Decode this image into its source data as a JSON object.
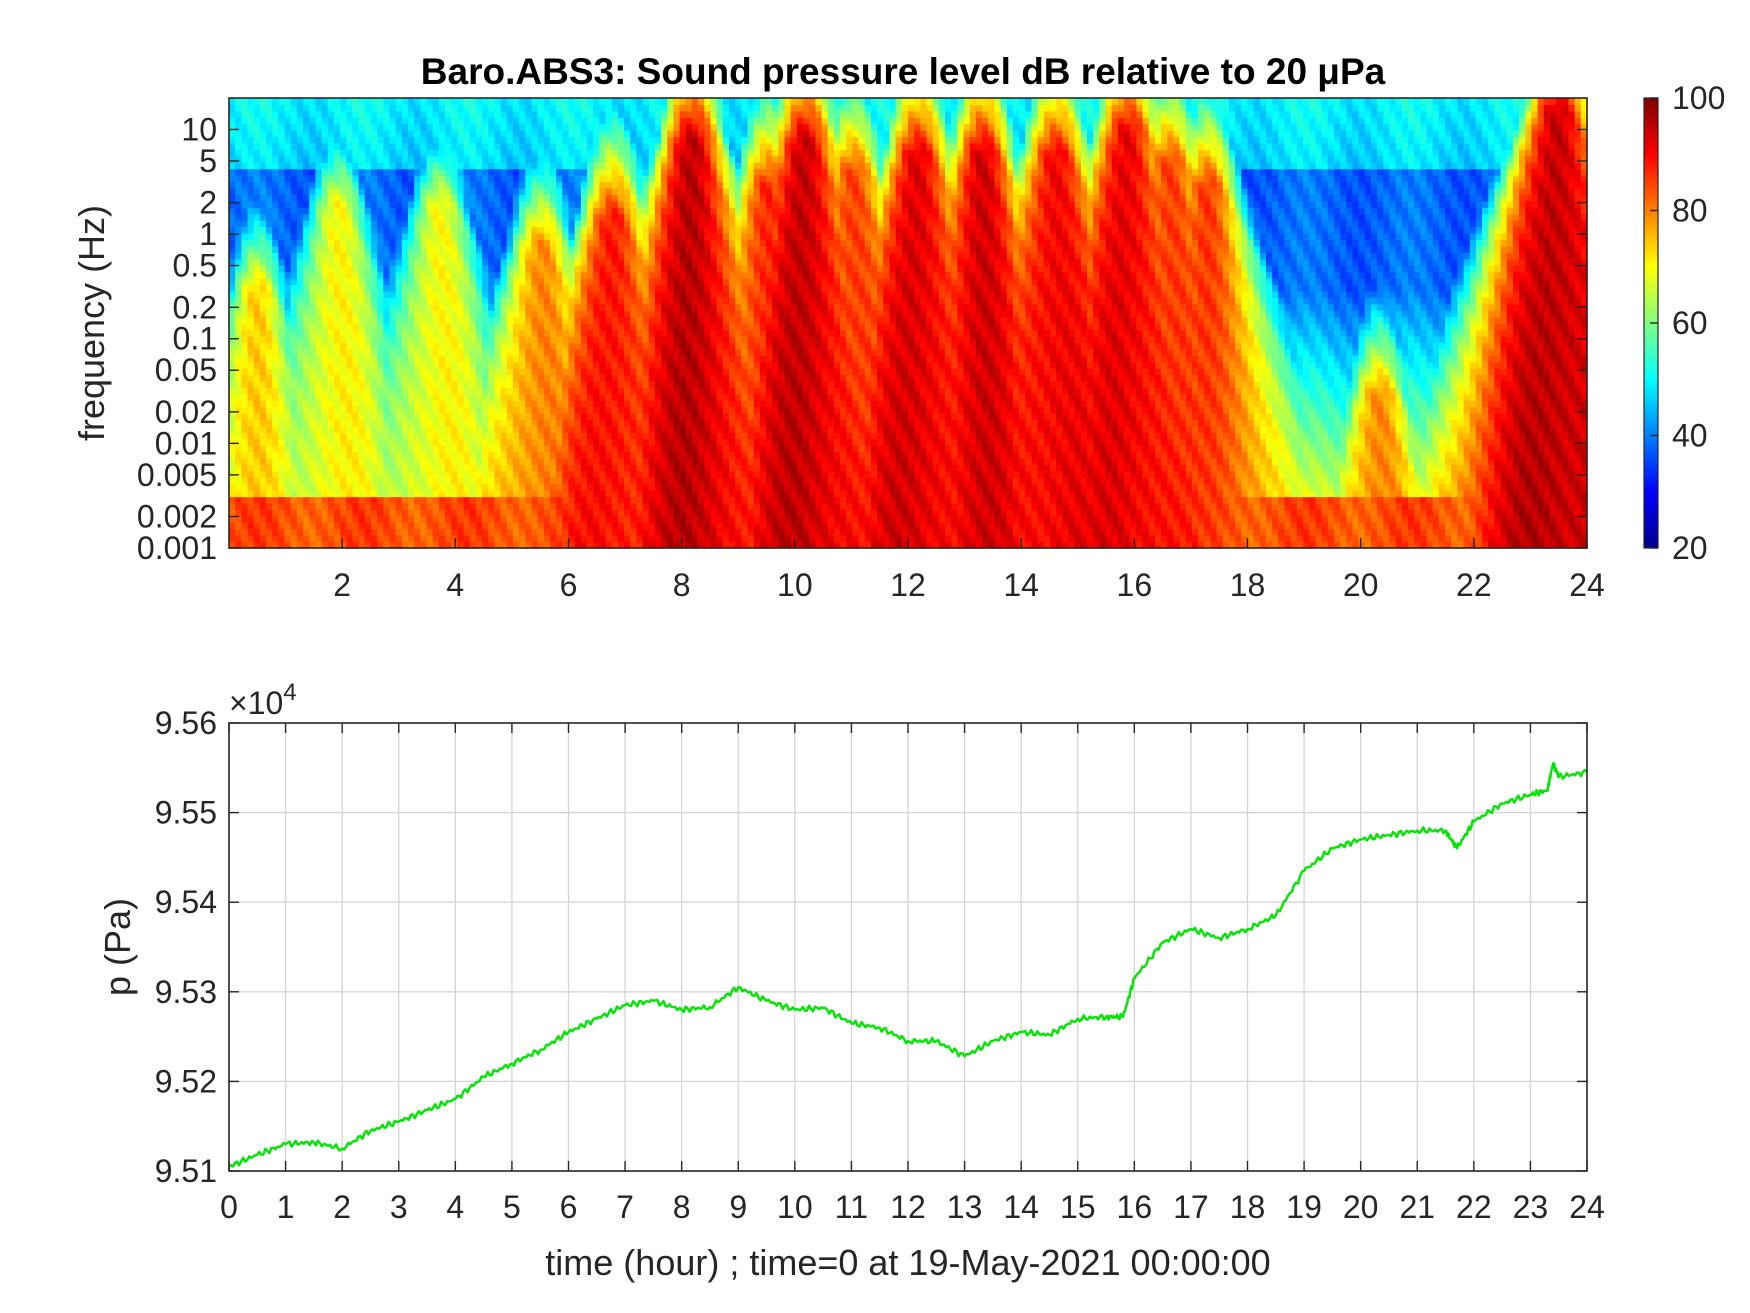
{
  "chart_data": [
    {
      "type": "heatmap",
      "title": "Baro.ABS3: Sound pressure level dB relative to 20 μPa",
      "xlabel": "",
      "ylabel": "frequency (Hz)",
      "x_range": [
        0,
        24
      ],
      "x_ticks": [
        2,
        4,
        6,
        8,
        10,
        12,
        14,
        16,
        18,
        20,
        22,
        24
      ],
      "y_scale": "log",
      "y_range": [
        0.001,
        20
      ],
      "y_ticks": [
        0.001,
        0.002,
        0.005,
        0.01,
        0.02,
        0.05,
        0.1,
        0.2,
        0.5,
        1,
        2,
        5,
        10
      ],
      "y_tick_labels": [
        "0.001",
        "0.002",
        "0.005",
        "0.01",
        "0.02",
        "0.05",
        "0.1",
        "0.2",
        "0.5",
        "1",
        "2",
        "5",
        "10"
      ],
      "colormap": "jet",
      "colorbar": {
        "min": 20,
        "max": 100,
        "ticks": [
          20,
          40,
          60,
          80,
          100
        ]
      },
      "grid": false,
      "activity_bursts": [
        {
          "hour": 0.5,
          "level_db": 72,
          "reach_hz": 0.3
        },
        {
          "hour": 1.9,
          "level_db": 70,
          "reach_hz": 2.0
        },
        {
          "hour": 3.7,
          "level_db": 70,
          "reach_hz": 2.0
        },
        {
          "hour": 5.5,
          "level_db": 80,
          "reach_hz": 0.8
        },
        {
          "hour": 6.8,
          "level_db": 90,
          "reach_hz": 1.5
        },
        {
          "hour": 8.2,
          "level_db": 94,
          "reach_hz": 8.0
        },
        {
          "hour": 9.5,
          "level_db": 86,
          "reach_hz": 3.0
        },
        {
          "hour": 10.2,
          "level_db": 94,
          "reach_hz": 8.0
        },
        {
          "hour": 11.0,
          "level_db": 86,
          "reach_hz": 4.0
        },
        {
          "hour": 12.2,
          "level_db": 93,
          "reach_hz": 6.0
        },
        {
          "hour": 13.3,
          "level_db": 92,
          "reach_hz": 6.0
        },
        {
          "hour": 14.6,
          "level_db": 92,
          "reach_hz": 6.0
        },
        {
          "hour": 15.9,
          "level_db": 92,
          "reach_hz": 10.0
        },
        {
          "hour": 16.6,
          "level_db": 86,
          "reach_hz": 5.0
        },
        {
          "hour": 17.3,
          "level_db": 84,
          "reach_hz": 3.0
        },
        {
          "hour": 20.3,
          "level_db": 80,
          "reach_hz": 0.03
        },
        {
          "hour": 23.5,
          "level_db": 96,
          "reach_hz": 15.0
        }
      ]
    },
    {
      "type": "line",
      "xlabel": "time (hour) ; time=0 at 19-May-2021 00:00:00",
      "ylabel": "p (Pa)",
      "y_exponent_label": "×10",
      "y_exponent": "4",
      "x_range": [
        0,
        24
      ],
      "x_ticks": [
        0,
        1,
        2,
        3,
        4,
        5,
        6,
        7,
        8,
        9,
        10,
        11,
        12,
        13,
        14,
        15,
        16,
        17,
        18,
        19,
        20,
        21,
        22,
        23,
        24
      ],
      "y_range": [
        95100,
        95600
      ],
      "y_ticks": [
        95100,
        95200,
        95300,
        95400,
        95500,
        95600
      ],
      "y_tick_labels": [
        "9.51",
        "9.52",
        "9.53",
        "9.54",
        "9.55",
        "9.56"
      ],
      "grid": true,
      "series": [
        {
          "color": "#00e600",
          "x": [
            0,
            0.5,
            1,
            1.5,
            2,
            2.5,
            3,
            3.5,
            4,
            4.5,
            5,
            5.5,
            6,
            6.5,
            7,
            7.5,
            8,
            8.5,
            9,
            9.5,
            10,
            10.5,
            11,
            11.5,
            12,
            12.5,
            13,
            13.5,
            14,
            14.5,
            15,
            15.5,
            15.8,
            16,
            16.5,
            17,
            17.5,
            18,
            18.5,
            19,
            19.5,
            20,
            20.5,
            21,
            21.5,
            21.7,
            22,
            22.5,
            23,
            23.3,
            23.4,
            23.5,
            24
          ],
          "y": [
            95105,
            95118,
            95130,
            95132,
            95125,
            95145,
            95155,
            95168,
            95180,
            95205,
            95220,
            95235,
            95255,
            95270,
            95285,
            95290,
            95280,
            95283,
            95305,
            95290,
            95280,
            95282,
            95265,
            95260,
            95245,
            95245,
            95228,
            95245,
            95255,
            95252,
            95270,
            95272,
            95272,
            95315,
            95355,
            95370,
            95360,
            95370,
            95385,
            95435,
            95460,
            95470,
            95475,
            95480,
            95480,
            95460,
            95490,
            95510,
            95520,
            95525,
            95555,
            95540,
            95545
          ]
        }
      ]
    }
  ]
}
